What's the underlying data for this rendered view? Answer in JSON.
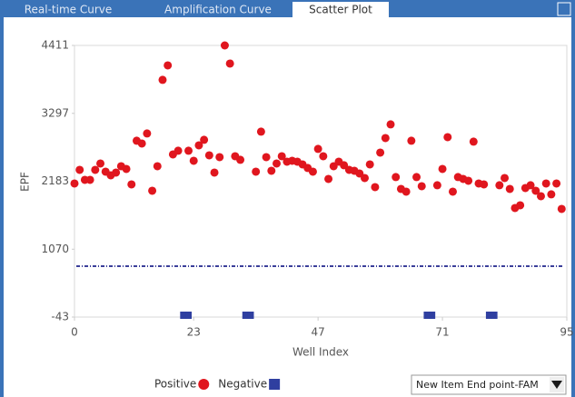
{
  "tabs": [
    "Real-time Curve",
    "Amplification Curve",
    "Scatter Plot"
  ],
  "active_tab": 2,
  "dropdown": {
    "label": "New Item End point-FAM"
  },
  "chart_data": {
    "type": "scatter",
    "xlabel": "Well Index",
    "ylabel": "EPF",
    "xlim": [
      0,
      95
    ],
    "xticks": [
      0,
      23,
      47,
      71,
      95
    ],
    "ylim": [
      -43,
      4411
    ],
    "yticks": [
      -43,
      1070,
      2183,
      3297,
      4411
    ],
    "threshold": 791,
    "threshold_color": "#3b3f9a",
    "series": [
      {
        "name": "Positive",
        "color": "#e0161e",
        "marker": "circle",
        "x": [
          0,
          1,
          2,
          3,
          4,
          5,
          6,
          7,
          8,
          9,
          10,
          11,
          12,
          13,
          14,
          15,
          16,
          17,
          18,
          19,
          20,
          22,
          23,
          24,
          25,
          26,
          27,
          28,
          29,
          30,
          31,
          32,
          35,
          36,
          37,
          38,
          39,
          40,
          41,
          42,
          43,
          44,
          45,
          46,
          47,
          48,
          49,
          50,
          51,
          52,
          53,
          54,
          55,
          56,
          57,
          58,
          59,
          60,
          61,
          62,
          63,
          64,
          65,
          66,
          67,
          70,
          71,
          72,
          73,
          74,
          75,
          76,
          77,
          78,
          79,
          82,
          83,
          84,
          85,
          86,
          87,
          88,
          89,
          90,
          91,
          92,
          93,
          94
        ],
        "values": [
          2147,
          2371,
          2207,
          2207,
          2371,
          2475,
          2341,
          2281,
          2326,
          2430,
          2386,
          2132,
          2848,
          2803,
          2967,
          2028,
          2430,
          3846,
          4084,
          2624,
          2684,
          2684,
          2520,
          2773,
          2863,
          2609,
          2326,
          2579,
          4411,
          4114,
          2594,
          2535,
          2341,
          2997,
          2579,
          2356,
          2475,
          2594,
          2505,
          2520,
          2505,
          2460,
          2401,
          2341,
          2714,
          2594,
          2222,
          2430,
          2505,
          2446,
          2371,
          2356,
          2311,
          2237,
          2460,
          2088,
          2654,
          2892,
          3116,
          2252,
          2058,
          2013,
          2848,
          2252,
          2103,
          2118,
          2386,
          2907,
          2013,
          2252,
          2222,
          2192,
          2833,
          2147,
          2132,
          2118,
          2237,
          2058,
          1745,
          1790,
          2073,
          2118,
          2028,
          1939,
          2147,
          1969,
          2147,
          1730
        ]
      },
      {
        "name": "Negative",
        "color": "#2f3fa0",
        "marker": "square",
        "x": [
          21,
          22,
          33,
          34,
          68,
          69,
          80,
          81
        ],
        "values": [
          -13,
          -13,
          -13,
          -13,
          -13,
          -13,
          -13,
          -13
        ]
      }
    ]
  }
}
